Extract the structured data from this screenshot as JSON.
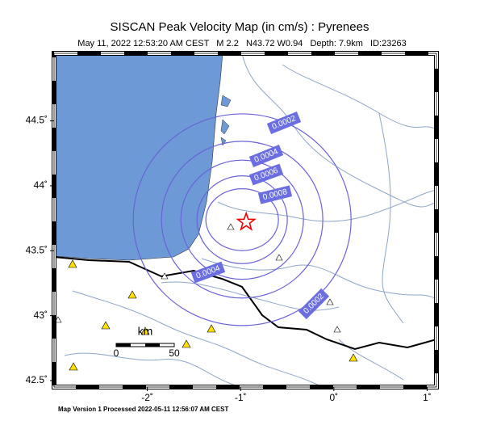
{
  "header": {
    "title": "SISCAN Peak Velocity Map (in cm/s) : Pyrenees",
    "subtitle": "May 11, 2022 12:53:20 AM CEST   M 2.2   N43.72 W0.94   Depth: 7.9km   ID:23263"
  },
  "map": {
    "lonlim": [
      -3,
      1.1
    ],
    "latlim": [
      42.45,
      45.02
    ],
    "lon_ticks": [
      {
        "value": -2,
        "label": "-2˚"
      },
      {
        "value": -1,
        "label": "-1˚"
      },
      {
        "value": 0,
        "label": "0˚"
      },
      {
        "value": 1,
        "label": "1˚"
      }
    ],
    "lat_ticks": [
      {
        "value": 44.5,
        "label": "44.5˚"
      },
      {
        "value": 44,
        "label": "44˚"
      },
      {
        "value": 43.5,
        "label": "43.5˚"
      },
      {
        "value": 43,
        "label": "43˚"
      },
      {
        "value": 42.5,
        "label": "42.5˚"
      }
    ],
    "epicenter": {
      "lat": 43.72,
      "lon": -0.94
    },
    "contour_labels": [
      "0.0002",
      "0.0004",
      "0.0006",
      "0.0008",
      "0.0004",
      "0.0002"
    ]
  },
  "scale": {
    "unit": "km",
    "ticks": [
      0,
      50
    ]
  },
  "footer": "Map Version 1 Processed 2022-05-11 12:56:07 AM CEST"
}
